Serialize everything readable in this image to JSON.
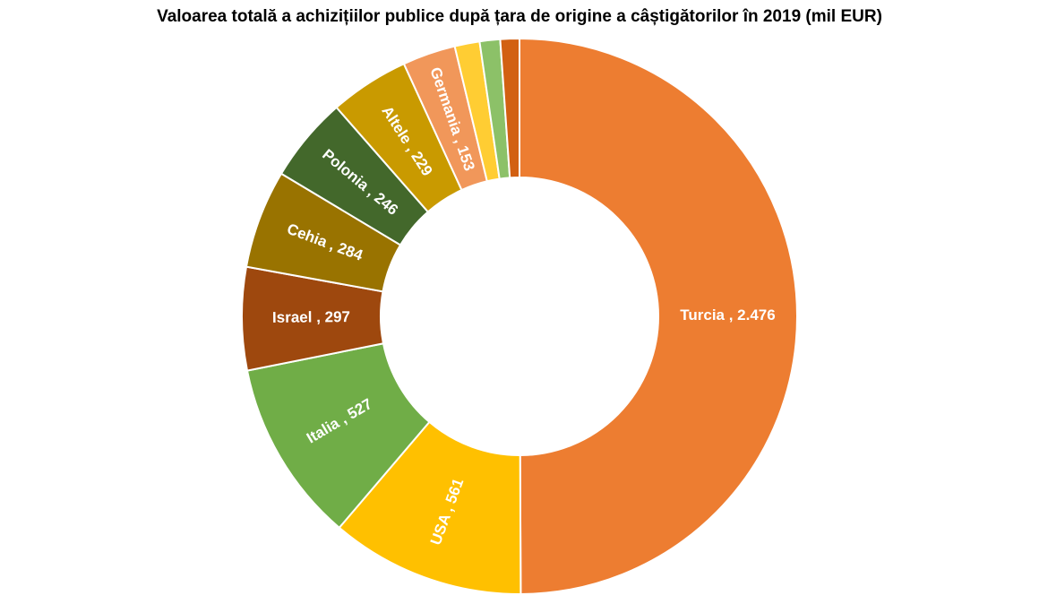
{
  "chart_data": {
    "type": "pie",
    "variant": "donut",
    "title": "Valoarea totală a achizițiilor publice după țara de origine a câștigătorilor în 2019 (mil EUR)",
    "legend": "none",
    "slices": [
      {
        "name": "Turcia",
        "value": 2476,
        "label": "Turcia ,  2.476",
        "color": "#ED7D31"
      },
      {
        "name": "USA",
        "value": 561,
        "label": "USA ,  561",
        "color": "#FFC000"
      },
      {
        "name": "Italia",
        "value": 527,
        "label": "Italia ,  527",
        "color": "#70AD47"
      },
      {
        "name": "Israel",
        "value": 297,
        "label": "Israel ,  297",
        "color": "#9E480E"
      },
      {
        "name": "Cehia",
        "value": 284,
        "label": "Cehia ,  284",
        "color": "#997300"
      },
      {
        "name": "Polonia",
        "value": 246,
        "label": "Polonia ,  246",
        "color": "#43682B"
      },
      {
        "name": "Altele",
        "value": 229,
        "label": "Altele ,  229",
        "color": "#C99A00"
      },
      {
        "name": "Germania",
        "value": 153,
        "label": "Germania ,  153",
        "color": "#F1975A"
      },
      {
        "name": "",
        "value": 72,
        "label": "",
        "color": "#FFCD33"
      },
      {
        "name": "",
        "value": 59,
        "label": "",
        "color": "#8CC168"
      },
      {
        "name": "",
        "value": 55,
        "label": "",
        "color": "#D26012"
      }
    ]
  }
}
